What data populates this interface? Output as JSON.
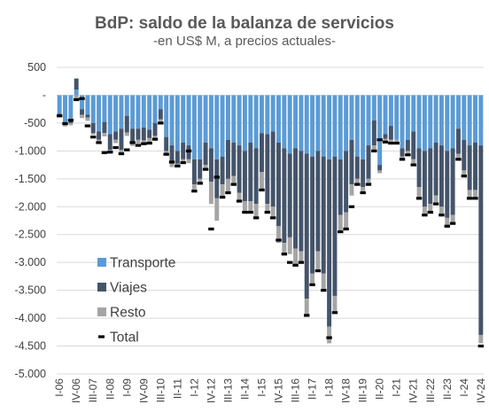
{
  "chart_data": {
    "type": "bar",
    "title": "BdP: saldo de la balanza de servicios",
    "subtitle": "-en US$ M, a precios actuales-",
    "xlabel": "",
    "ylabel": "",
    "ylim": [
      -5000,
      500
    ],
    "yticks": [
      500,
      0,
      -500,
      -1000,
      -1500,
      -2000,
      -2500,
      -3000,
      -3500,
      -4000,
      -4500,
      -5000
    ],
    "ytick_labels": [
      "500",
      "-",
      "-500",
      "-1.000",
      "-1.500",
      "-2.000",
      "-2.500",
      "-3.000",
      "-3.500",
      "-4.000",
      "-4.500",
      "-5.000"
    ],
    "grid": true,
    "legend_position": "bottom-left",
    "stacked": true,
    "x_tick_labels": [
      "I-06",
      "IV-06",
      "III-07",
      "II-08",
      "I-09",
      "IV-09",
      "III-10",
      "II-11",
      "I-12",
      "IV-12",
      "III-13",
      "II-14",
      "I-15",
      "IV-15",
      "III-16",
      "II-17",
      "I-18",
      "IV-18",
      "III-19",
      "II-20",
      "I-21",
      "IV-21",
      "III-22",
      "II-23",
      "I-24",
      "IV-24"
    ],
    "categories": [
      "I-06",
      "II-06",
      "III-06",
      "IV-06",
      "I-07",
      "II-07",
      "III-07",
      "IV-07",
      "I-08",
      "II-08",
      "III-08",
      "IV-08",
      "I-09",
      "II-09",
      "III-09",
      "IV-09",
      "I-10",
      "II-10",
      "III-10",
      "IV-10",
      "I-11",
      "II-11",
      "III-11",
      "IV-11",
      "I-12",
      "II-12",
      "III-12",
      "IV-12",
      "I-13",
      "II-13",
      "III-13",
      "IV-13",
      "I-14",
      "II-14",
      "III-14",
      "IV-14",
      "I-15",
      "II-15",
      "III-15",
      "IV-15",
      "I-16",
      "II-16",
      "III-16",
      "IV-16",
      "I-17",
      "II-17",
      "III-17",
      "IV-17",
      "I-18",
      "II-18",
      "III-18",
      "IV-18",
      "I-19",
      "II-19",
      "III-19",
      "IV-19",
      "I-20",
      "II-20",
      "III-20",
      "IV-20",
      "I-21",
      "II-21",
      "III-21",
      "IV-21",
      "I-22",
      "II-22",
      "III-22",
      "IV-22",
      "I-23",
      "II-23",
      "III-23",
      "IV-23",
      "I-24",
      "II-24",
      "III-24",
      "IV-24"
    ],
    "series": [
      {
        "name": "Transporte",
        "color": "#5b9bd5",
        "values": [
          -330,
          -480,
          -420,
          100,
          -250,
          -350,
          -500,
          -650,
          -480,
          -700,
          -650,
          -600,
          -370,
          -600,
          -600,
          -580,
          -620,
          -500,
          -250,
          -750,
          -900,
          -1000,
          -850,
          -900,
          -1150,
          -1150,
          -850,
          -950,
          -1150,
          -1100,
          -800,
          -850,
          -900,
          -1000,
          -850,
          -950,
          -680,
          -700,
          -650,
          -850,
          -950,
          -1050,
          -950,
          -1000,
          -1050,
          -1100,
          -1000,
          -1100,
          -1150,
          -1100,
          -1150,
          -1000,
          -800,
          -1100,
          -1150,
          -900,
          -450,
          -1250,
          -700,
          -550,
          -800,
          -950,
          -800,
          -650,
          -950,
          -1000,
          -950,
          -850,
          -900,
          -1000,
          -950,
          -600,
          -800,
          -900,
          -850,
          -900
        ]
      },
      {
        "name": "Viajes",
        "color": "#44546a",
        "values": [
          -30,
          -20,
          -80,
          200,
          -100,
          -50,
          -180,
          -150,
          -200,
          -280,
          -150,
          -380,
          -300,
          -250,
          -200,
          -230,
          -150,
          -230,
          -180,
          -250,
          -320,
          -230,
          -300,
          -250,
          -450,
          -350,
          -400,
          -600,
          -700,
          -500,
          -700,
          -600,
          -850,
          -900,
          -1050,
          -1000,
          -700,
          -1250,
          -1350,
          -1500,
          -1700,
          -1500,
          -1800,
          -1800,
          -2600,
          -2100,
          -1800,
          -2100,
          -3000,
          -2500,
          -1000,
          -1100,
          -800,
          -400,
          -500,
          -600,
          -450,
          -100,
          -80,
          -250,
          0,
          -150,
          -200,
          -500,
          -700,
          -1000,
          -1000,
          -950,
          -1100,
          -1200,
          -1200,
          -450,
          -550,
          -800,
          -850,
          -3400
        ]
      },
      {
        "name": "Resto",
        "color": "#a5a5a5",
        "values": [
          -40,
          -60,
          -40,
          -60,
          -60,
          -60,
          -30,
          -40,
          -60,
          -70,
          -60,
          -70,
          -60,
          -60,
          -70,
          -60,
          -70,
          -60,
          -70,
          -60,
          -70,
          -60,
          -60,
          -70,
          -100,
          -80,
          -80,
          -400,
          -400,
          -230,
          -250,
          -150,
          -150,
          -200,
          -200,
          -250,
          -300,
          -150,
          -200,
          -300,
          -200,
          -300,
          -300,
          -200,
          -300,
          -200,
          -350,
          -300,
          -300,
          -300,
          -300,
          -300,
          -200,
          -100,
          -100,
          -100,
          -100,
          -50,
          -60,
          -60,
          -60,
          -50,
          -70,
          -100,
          -200,
          -150,
          -150,
          -150,
          -150,
          -150,
          -150,
          -100,
          -100,
          -150,
          -150,
          -150
        ]
      },
      {
        "name": "Total",
        "color": "#000000",
        "values": [
          -370,
          -510,
          -450,
          -80,
          -60,
          -550,
          -750,
          -850,
          -1030,
          -1020,
          -940,
          -1050,
          -980,
          -850,
          -900,
          -870,
          -860,
          -790,
          -500,
          -1060,
          -1200,
          -1270,
          -1210,
          -1000,
          -1720,
          -1580,
          -1330,
          -2400,
          -1470,
          -1830,
          -1750,
          -1600,
          -1900,
          -2100,
          -2100,
          -2200,
          -1700,
          -2100,
          -2200,
          -2600,
          -2850,
          -3000,
          -3050,
          -3000,
          -3950,
          -3400,
          -3150,
          -3500,
          -4350,
          -3900,
          -2450,
          -2400,
          -2000,
          -1600,
          -1750,
          -1600,
          -1000,
          -800,
          -840,
          -860,
          -860,
          -1150,
          -1070,
          -1250,
          -1850,
          -2150,
          -2100,
          -1950,
          -2150,
          -2350,
          -2300,
          -1150,
          -1450,
          -1850,
          -1850,
          -4500
        ]
      }
    ]
  }
}
